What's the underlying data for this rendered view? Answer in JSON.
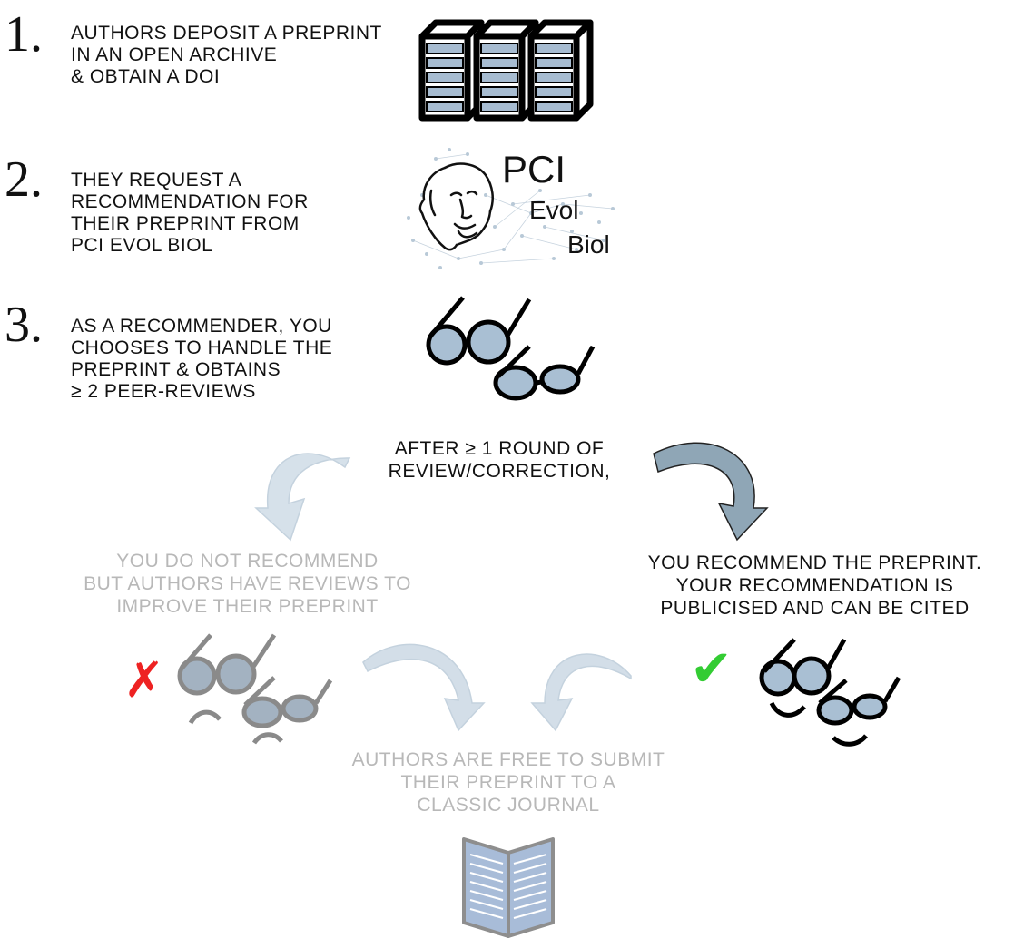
{
  "steps": [
    {
      "number": "1.",
      "lines": [
        "AUTHORS DEPOSIT A PREPRINT",
        "IN AN OPEN ARCHIVE",
        "& OBTAIN A DOI"
      ]
    },
    {
      "number": "2.",
      "lines": [
        "THEY REQUEST A",
        "RECOMMENDATION FOR",
        "THEIR PREPRINT FROM",
        "PCI EVOL BIOL"
      ]
    },
    {
      "number": "3.",
      "lines": [
        "AS A RECOMMENDER, YOU",
        "CHOOSES TO HANDLE THE",
        "PREPRINT & OBTAINS",
        "≥ 2 PEER-REVIEWS"
      ]
    }
  ],
  "logo": {
    "line1": "PCI",
    "line2": "Evol",
    "line3": "Biol"
  },
  "after_review": [
    "AFTER ≥ 1 ROUND OF",
    "REVIEW/CORRECTION,"
  ],
  "not_recommend": [
    "YOU DO NOT RECOMMEND",
    "BUT AUTHORS HAVE REVIEWS TO",
    "IMPROVE THEIR PREPRINT"
  ],
  "recommend": [
    "YOU RECOMMEND THE PREPRINT.",
    "YOUR RECOMMENDATION IS",
    "PUBLICISED AND CAN BE CITED"
  ],
  "free_submit": [
    "AUTHORS ARE FREE TO SUBMIT",
    "THEIR PREPRINT TO A",
    "CLASSIC JOURNAL"
  ],
  "marks": {
    "cross": "✗",
    "check": "✔"
  },
  "colors": {
    "cross": "#ee2222",
    "check": "#33cc33",
    "arrow_dark": "#8fa6b6",
    "arrow_light": "#d3dee8",
    "server": "#a7bcd1"
  }
}
